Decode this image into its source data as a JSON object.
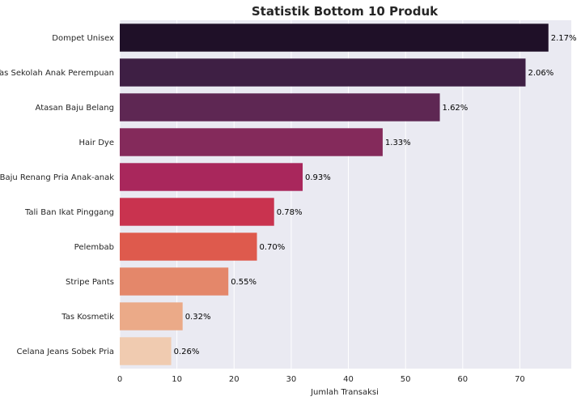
{
  "chart_data": {
    "type": "bar",
    "orientation": "horizontal",
    "title": "Statistik Bottom 10 Produk",
    "xlabel": "Jumlah Transaksi",
    "ylabel": "",
    "xlim": [
      0,
      79
    ],
    "xticks": [
      "0",
      "10",
      "20",
      "30",
      "40",
      "50",
      "60",
      "70"
    ],
    "grid": true,
    "categories": [
      "Dompet Unisex",
      "Tas Sekolah Anak Perempuan",
      "Atasan Baju Belang",
      "Hair Dye",
      "Baju Renang Pria Anak-anak",
      "Tali Ban Ikat Pinggang",
      "Pelembab",
      "Stripe Pants",
      "Tas Kosmetik",
      "Celana Jeans Sobek Pria"
    ],
    "values": [
      75,
      71,
      56,
      46,
      32,
      27,
      24,
      19,
      11,
      9
    ],
    "data_labels": [
      "2.17%",
      "2.06%",
      "1.62%",
      "1.33%",
      "0.93%",
      "0.78%",
      "0.70%",
      "0.55%",
      "0.32%",
      "0.26%"
    ],
    "colors": [
      "#1f1028",
      "#3e1f44",
      "#5e2753",
      "#842a5b",
      "#a9275c",
      "#c9334f",
      "#de5a4d",
      "#e4876a",
      "#ebaa88",
      "#f0cbb0"
    ],
    "background": "#eaeaf2"
  }
}
